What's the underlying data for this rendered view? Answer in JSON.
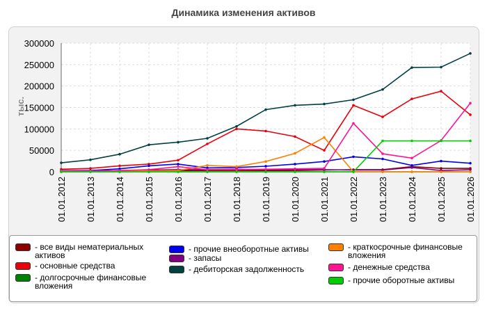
{
  "chart_data": {
    "type": "line",
    "title": "Динамика изменения активов",
    "ylabel": "тыс.",
    "xlabel": "",
    "ylim": [
      0,
      300000
    ],
    "yticks": [
      "0",
      "50000",
      "100000",
      "150000",
      "200000",
      "250000",
      "300000"
    ],
    "categories": [
      "01.01.2012",
      "01.01.2013",
      "01.01.2014",
      "01.01.2015",
      "01.01.2016",
      "01.01.2017",
      "01.01.2018",
      "01.01.2019",
      "01.01.2020",
      "01.01.2021",
      "01.01.2022",
      "01.01.2023",
      "01.01.2024",
      "01.01.2025",
      "01.01.2026"
    ],
    "grid": true,
    "legend_position": "bottom",
    "series": [
      {
        "name": "- все виды нематериальных активов",
        "color": "#8b0000",
        "values": [
          2000,
          2000,
          3000,
          3000,
          3000,
          3000,
          3000,
          3000,
          3000,
          4000,
          5000,
          5000,
          12000,
          8000,
          8000
        ]
      },
      {
        "name": "- основные средства",
        "color": "#e8000b",
        "values": [
          6000,
          8000,
          14000,
          18000,
          27000,
          65000,
          100000,
          95000,
          82000,
          50000,
          155000,
          128000,
          170000,
          188000,
          133000
        ]
      },
      {
        "name": "- долгосрочные финансовые вложения",
        "color": "#008000",
        "values": [
          0,
          0,
          0,
          0,
          0,
          0,
          0,
          0,
          0,
          0,
          0,
          0,
          0,
          0,
          0
        ]
      },
      {
        "name": "- прочие внеоборотные активы",
        "color": "#0000ee",
        "values": [
          3000,
          3000,
          7000,
          14000,
          18000,
          9000,
          10000,
          13000,
          18000,
          24000,
          35000,
          30000,
          15000,
          25000,
          20000
        ]
      },
      {
        "name": "- запасы",
        "color": "#800080",
        "values": [
          1000,
          2000,
          3000,
          4000,
          5000,
          5000,
          6000,
          5000,
          5000,
          5000,
          4000,
          4000,
          10000,
          3000,
          5000
        ]
      },
      {
        "name": "- дебиторская задолженность",
        "color": "#004040",
        "values": [
          21000,
          28000,
          41000,
          63000,
          69000,
          78000,
          106000,
          145000,
          155000,
          158000,
          168000,
          192000,
          243000,
          244000,
          276000
        ]
      },
      {
        "name": "- краткосрочные финансовые вложения",
        "color": "#ff8000",
        "values": [
          2000,
          2000,
          2000,
          2000,
          3000,
          15000,
          12000,
          24000,
          43000,
          80000,
          0,
          0,
          0,
          0,
          0
        ]
      },
      {
        "name": "- денежные средства",
        "color": "#ff1493",
        "values": [
          1000,
          2000,
          3000,
          5000,
          12000,
          5000,
          5000,
          6000,
          7000,
          8000,
          113000,
          42000,
          32000,
          73000,
          160000
        ]
      },
      {
        "name": "- прочие оборотные активы",
        "color": "#00cc00",
        "values": [
          0,
          0,
          0,
          0,
          0,
          0,
          0,
          0,
          0,
          0,
          0,
          72000,
          72000,
          72000,
          72000
        ]
      }
    ]
  }
}
